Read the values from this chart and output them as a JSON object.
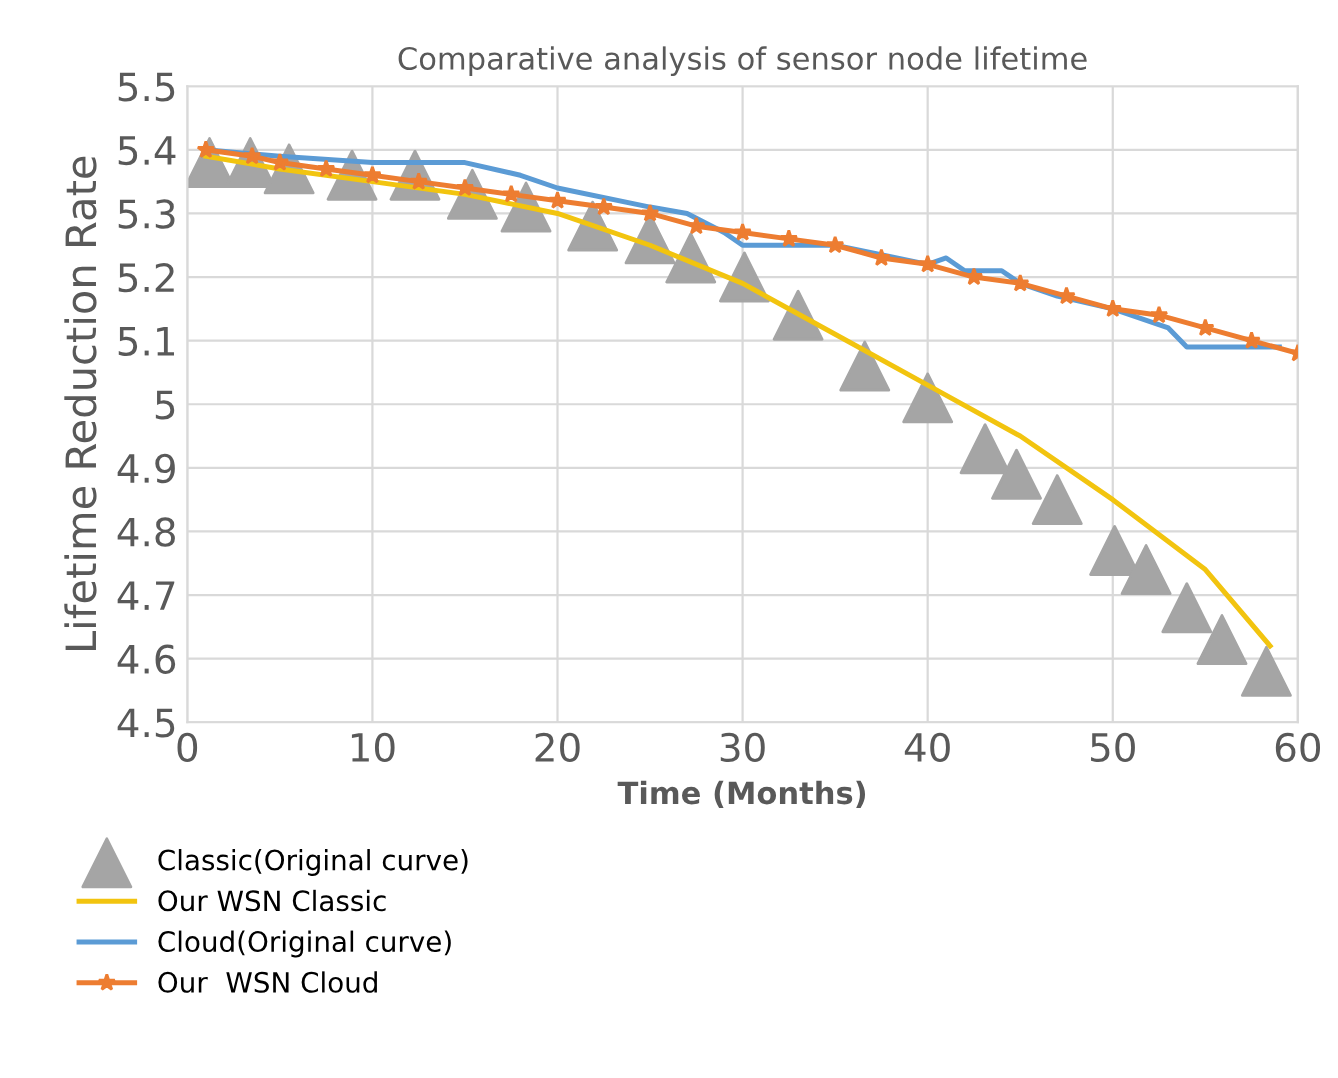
{
  "chart_data": {
    "type": "line",
    "title": "Comparative analysis of sensor node lifetime",
    "xlabel": "Time (Months)",
    "ylabel": "Lifetime Reduction Rate",
    "xlim": [
      0,
      60
    ],
    "xticks": [
      0,
      10,
      20,
      30,
      40,
      50,
      60
    ],
    "ylim": [
      4.5,
      5.5
    ],
    "yticks": [
      4.5,
      4.6,
      4.7,
      4.8,
      4.9,
      5,
      5.1,
      5.2,
      5.3,
      5.4,
      5.5
    ],
    "grid": true,
    "legend": "bottom",
    "series": [
      {
        "name": "Classic(Original curve)",
        "type": "scatter",
        "marker": "triangle",
        "color": "#a5a5a5",
        "x": [
          1.2,
          3.4,
          5.5,
          8.9,
          12.3,
          15.4,
          18.3,
          21.9,
          25,
          27.2,
          30.1,
          33,
          36.6,
          40,
          43.1,
          44.8,
          47,
          50.1,
          51.8,
          54,
          55.9,
          58.3
        ],
        "values": [
          5.38,
          5.38,
          5.37,
          5.36,
          5.36,
          5.33,
          5.31,
          5.28,
          5.26,
          5.23,
          5.2,
          5.14,
          5.06,
          5.01,
          4.93,
          4.89,
          4.85,
          4.77,
          4.74,
          4.68,
          4.63,
          4.58
        ]
      },
      {
        "name": "Our WSN Classic",
        "color": "#f2c40f",
        "marker": "none",
        "x": [
          1,
          5,
          10,
          15,
          20,
          25,
          30,
          35,
          40,
          45,
          50,
          55,
          58.5
        ],
        "values": [
          5.39,
          5.37,
          5.35,
          5.33,
          5.3,
          5.25,
          5.19,
          5.11,
          5.03,
          4.95,
          4.85,
          4.74,
          4.62
        ]
      },
      {
        "name": "Cloud(Original curve)",
        "color": "#5b9bd5",
        "marker": "none",
        "x": [
          1,
          5,
          10,
          13,
          15,
          18,
          20,
          25,
          27,
          29,
          30,
          33,
          35,
          40,
          41,
          42,
          44,
          45,
          47,
          50,
          53,
          54,
          56,
          59
        ],
        "values": [
          5.4,
          5.39,
          5.38,
          5.38,
          5.38,
          5.36,
          5.34,
          5.31,
          5.3,
          5.27,
          5.25,
          5.25,
          5.25,
          5.22,
          5.23,
          5.21,
          5.21,
          5.19,
          5.17,
          5.15,
          5.12,
          5.09,
          5.09,
          5.09
        ]
      },
      {
        "name": "Our  WSN Cloud",
        "color": "#ed7d31",
        "marker": "star",
        "x": [
          1,
          3.5,
          5,
          7.5,
          10,
          12.5,
          15,
          17.5,
          20,
          22.5,
          25,
          27.5,
          30,
          32.5,
          35,
          37.5,
          40,
          42.5,
          45,
          47.5,
          50,
          52.5,
          55,
          57.5,
          60
        ],
        "values": [
          5.4,
          5.39,
          5.38,
          5.37,
          5.36,
          5.35,
          5.34,
          5.33,
          5.32,
          5.31,
          5.3,
          5.28,
          5.27,
          5.26,
          5.25,
          5.23,
          5.22,
          5.2,
          5.19,
          5.17,
          5.15,
          5.14,
          5.12,
          5.1,
          5.08
        ]
      }
    ]
  }
}
